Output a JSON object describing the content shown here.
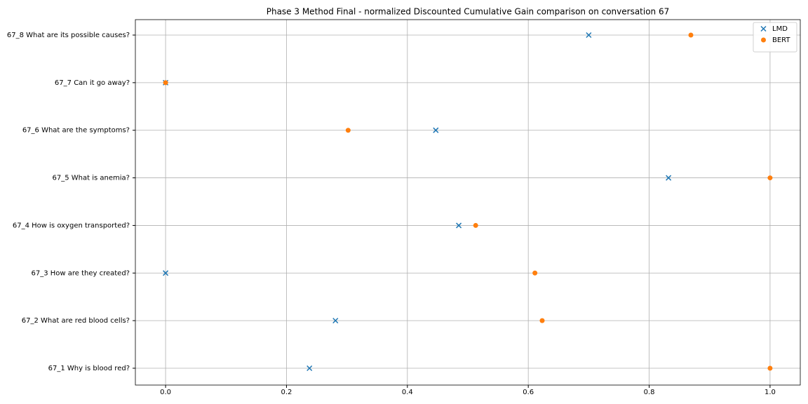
{
  "chart_data": {
    "type": "scatter",
    "title": "Phase 3 Method Final - normalized Discounted Cumulative Gain comparison on conversation 67",
    "categories": [
      "67_1 Why is blood red?",
      "67_2 What are red blood cells?",
      "67_3 How are they created?",
      "67_4 How is oxygen transported?",
      "67_5 What is anemia?",
      "67_6 What are the symptoms?",
      "67_7 Can it go away?",
      "67_8 What are its possible causes?"
    ],
    "series": [
      {
        "name": "LMD",
        "color": "#1f77b4",
        "marker": "x",
        "values": [
          0.238,
          0.281,
          0,
          0.485,
          0.832,
          0.447,
          0,
          0.7
        ]
      },
      {
        "name": "BERT",
        "color": "#ff7f0e",
        "marker": "o",
        "values": [
          1.0,
          0.623,
          0.611,
          0.513,
          1.0,
          0.302,
          0,
          0.869
        ]
      }
    ],
    "xlim": [
      -0.05,
      1.05
    ],
    "xticks": [
      {
        "value": 0,
        "label": "0.0"
      },
      0.2,
      0.4,
      0.6,
      0.8,
      {
        "value": 1,
        "label": "1.0"
      }
    ],
    "grid": true,
    "legend": "upper right"
  }
}
